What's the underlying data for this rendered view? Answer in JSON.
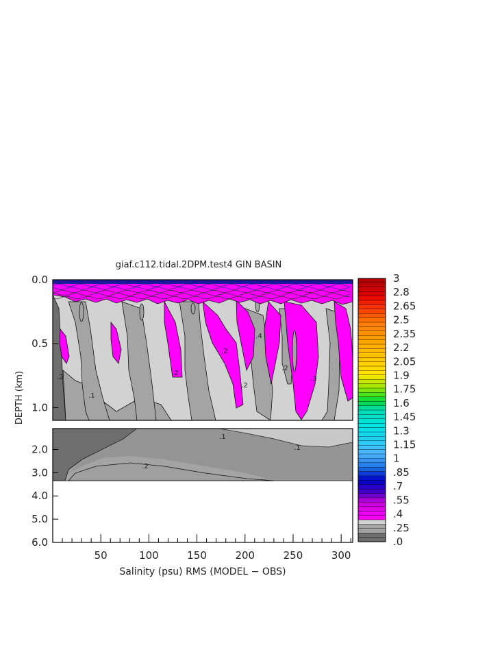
{
  "chart_data": {
    "type": "heatmap",
    "title": "giaf.c112.tidal.2DPM.test4 GIN BASIN",
    "xlabel": "Salinity (psu) RMS (MODEL − OBS)",
    "ylabel": "DEPTH (km)",
    "x_ticks": [
      "50",
      "100",
      "150",
      "200",
      "250",
      "300"
    ],
    "x_tick_values": [
      50,
      100,
      150,
      200,
      250,
      300
    ],
    "xlim": [
      0,
      312
    ],
    "upper_panel": {
      "y_ticks": [
        "0.0",
        "0.5",
        "1.0"
      ],
      "y_tick_values": [
        0.0,
        0.5,
        1.0
      ],
      "ylim": [
        0.0,
        1.1
      ]
    },
    "lower_panel": {
      "y_ticks": [
        "2.0",
        "3.0",
        "4.0",
        "5.0",
        "6.0"
      ],
      "y_tick_values": [
        2.0,
        3.0,
        4.0,
        5.0,
        6.0
      ],
      "ylim": [
        1.1,
        6.0
      ],
      "data_bottom_km": 3.35
    },
    "contour_labels": [
      ".1",
      ".1",
      ".1",
      ".2",
      ".2",
      ".2",
      ".2",
      ".2",
      ".2",
      ".3",
      ".4"
    ],
    "colorbar": {
      "labels": [
        "3",
        "2.8",
        "2.65",
        "2.5",
        "2.35",
        "2.2",
        "2.05",
        "1.9",
        "1.75",
        "1.6",
        "1.45",
        "1.3",
        "1.15",
        "1",
        ".85",
        ".7",
        ".55",
        ".4",
        ".25",
        ".0"
      ],
      "min": 0,
      "max": 3
    },
    "colors": {
      "level_0": "#6e6e6e",
      "level_1": "#a4a4a4",
      "level_2": "#d2d2d2",
      "level_3": "#ff00ff",
      "deep": "#7a7a7a",
      "mid": "#9f9f9f",
      "light": "#c8c8c8"
    }
  }
}
